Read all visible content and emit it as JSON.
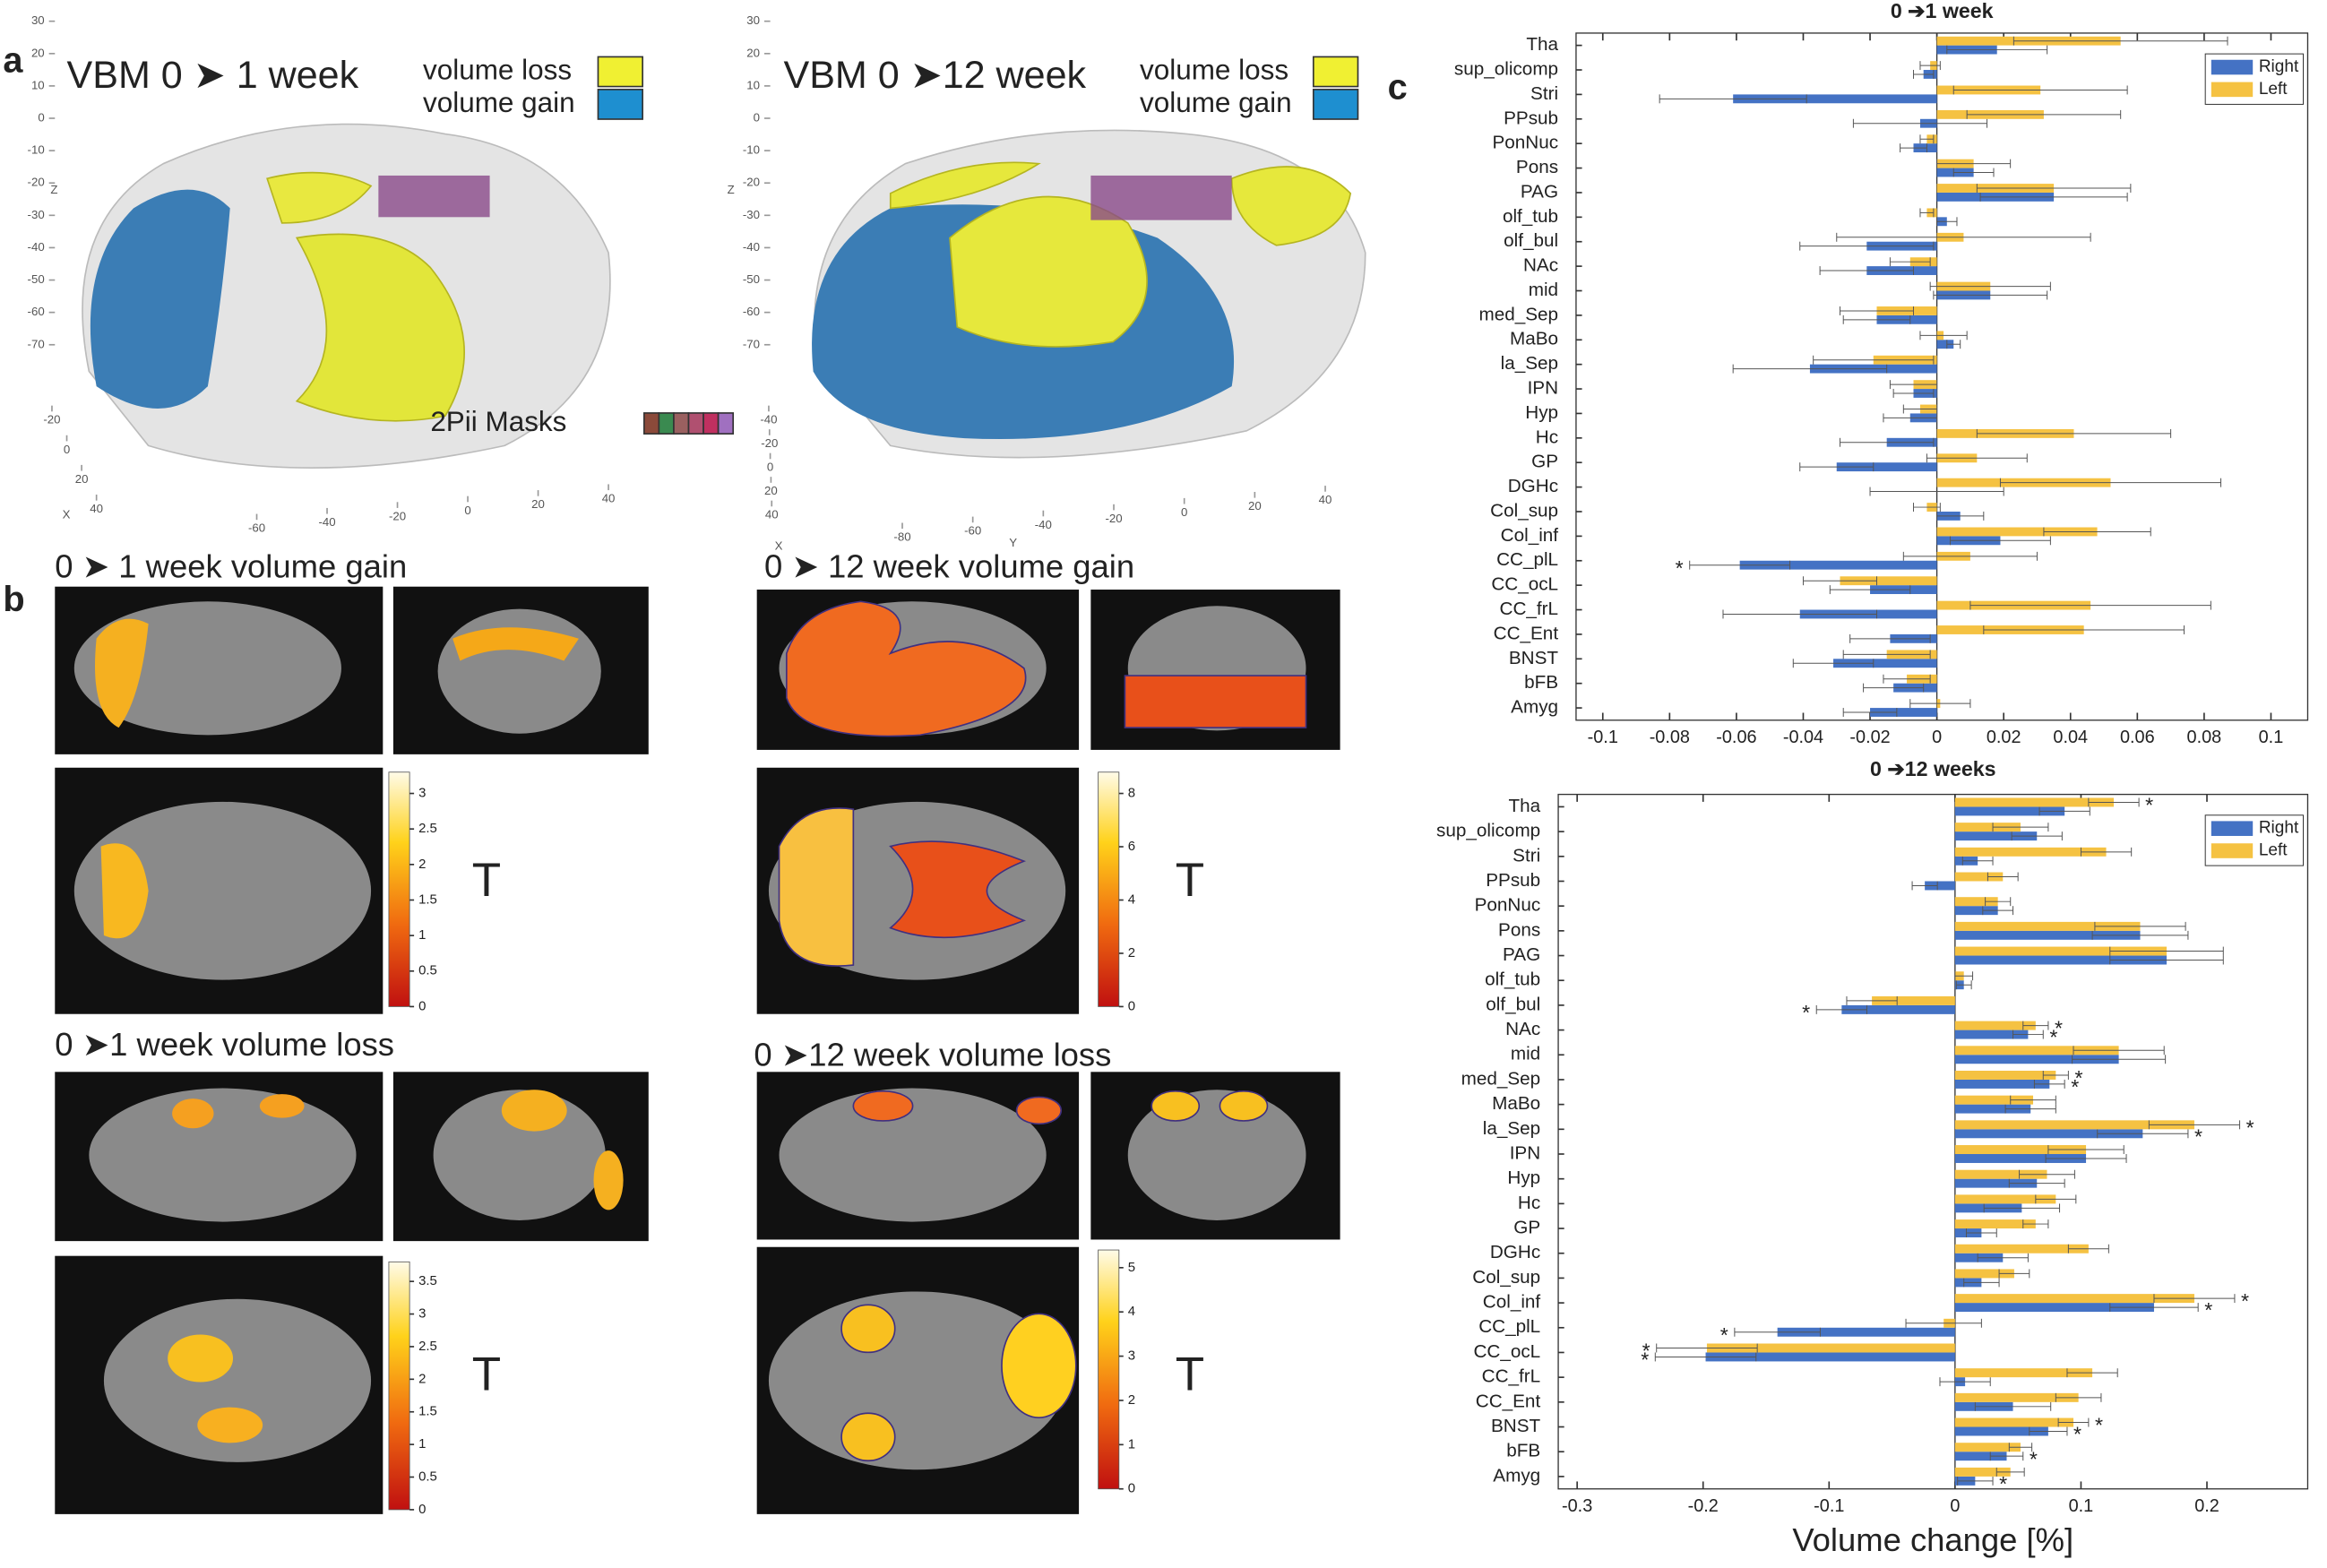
{
  "panels": {
    "a": {
      "label": "a",
      "views": [
        {
          "title": "VBM 0 ➤ 1 week",
          "legend": [
            "volume loss",
            "volume gain"
          ],
          "masks": "2Pii Masks",
          "zticks": [
            30,
            20,
            10,
            0,
            -10,
            -20,
            -30,
            -40,
            -50,
            -60,
            -70
          ],
          "zlabel": "Z",
          "xticks": [
            -20,
            0,
            20,
            40
          ],
          "xlabel": "X",
          "yticks": [
            -60,
            -40,
            -20,
            0,
            20,
            40
          ]
        },
        {
          "title": "VBM 0 ➤12 week",
          "legend": [
            "volume loss",
            "volume gain"
          ],
          "zticks": [
            30,
            20,
            10,
            0,
            -10,
            -20,
            -30,
            -40,
            -50,
            -60,
            -70
          ],
          "zlabel": "Z",
          "xticks": [
            -40,
            -20,
            0,
            20,
            40
          ],
          "xlabel": "X",
          "yticks": [
            -80,
            -60,
            -40,
            -20,
            0,
            20,
            40
          ],
          "ylabel": "Y"
        }
      ]
    },
    "b": {
      "label": "b",
      "maps": [
        {
          "title": "0 ➤ 1 week volume gain",
          "colorbar": {
            "clim": [
              0,
              3.3
            ],
            "ticks": [
              0,
              0.5,
              1,
              1.5,
              2,
              2.5,
              3
            ],
            "label": "T"
          }
        },
        {
          "title": "0 ➤ 12 week volume gain",
          "colorbar": {
            "clim": [
              0,
              8.8
            ],
            "ticks": [
              0,
              2,
              4,
              6,
              8
            ],
            "label": "T"
          }
        },
        {
          "title": "0 ➤1 week volume loss",
          "colorbar": {
            "clim": [
              0,
              3.8
            ],
            "ticks": [
              0,
              0.5,
              1,
              1.5,
              2,
              2.5,
              3,
              3.5
            ],
            "label": "T"
          }
        },
        {
          "title": "0 ➤12 week volume loss",
          "colorbar": {
            "clim": [
              0,
              5.4
            ],
            "ticks": [
              0,
              1,
              2,
              3,
              4,
              5
            ],
            "label": "T"
          }
        }
      ]
    },
    "c": {
      "label": "c"
    }
  },
  "chart_data": [
    {
      "type": "hbar",
      "title": "0 ➔1 week",
      "legend": "upper right",
      "categories": [
        "Tha",
        "sup_olicomp",
        "Stri",
        "PPsub",
        "PonNuc",
        "Pons",
        "PAG",
        "olf_tub",
        "olf_bul",
        "NAc",
        "mid",
        "med_Sep",
        "MaBo",
        "la_Sep",
        "IPN",
        "Hyp",
        "Hc",
        "GP",
        "DGHc",
        "Col_sup",
        "Col_inf",
        "CC_plL",
        "CC_ocL",
        "CC_frL",
        "CC_Ent",
        "BNST",
        "bFB",
        "Amyg"
      ],
      "series": [
        {
          "name": "Right",
          "color": "#4472c4",
          "values": [
            0.018,
            -0.004,
            -0.061,
            -0.005,
            -0.007,
            0.011,
            0.035,
            0.003,
            -0.021,
            -0.021,
            0.016,
            -0.018,
            0.005,
            -0.038,
            -0.007,
            -0.008,
            -0.015,
            -0.03,
            0,
            0.007,
            0.019,
            -0.059,
            -0.02,
            -0.041,
            -0.014,
            -0.031,
            -0.013,
            -0.02
          ],
          "errors": [
            0.015,
            0.003,
            0.022,
            0.02,
            0.004,
            0.006,
            0.022,
            0.003,
            0.02,
            0.014,
            0.017,
            0.01,
            0.002,
            0.023,
            0.006,
            0.008,
            0.014,
            0.011,
            0.02,
            0.007,
            0.015,
            0.015,
            0.012,
            0.023,
            0.012,
            0.012,
            0.009,
            0.008
          ]
        },
        {
          "name": "Left",
          "color": "#f5c242",
          "values": [
            0.055,
            -0.002,
            0.031,
            0.032,
            -0.003,
            0.011,
            0.035,
            -0.003,
            0.008,
            -0.008,
            0.016,
            -0.018,
            0.002,
            -0.019,
            -0.007,
            -0.005,
            0.041,
            0.012,
            0.052,
            -0.003,
            0.048,
            0.01,
            -0.029,
            0.046,
            0.044,
            -0.015,
            -0.009,
            0.001
          ],
          "errors": [
            0.032,
            0.003,
            0.026,
            0.023,
            0.002,
            0.011,
            0.023,
            0.002,
            0.038,
            0.006,
            0.018,
            0.011,
            0.007,
            0.018,
            0.007,
            0.005,
            0.029,
            0.015,
            0.033,
            0.004,
            0.016,
            0.02,
            0.011,
            0.036,
            0.03,
            0.013,
            0.007,
            0.009
          ]
        }
      ],
      "annotations": [
        {
          "text": "*",
          "series": 0,
          "index": 21
        }
      ],
      "xlim": [
        -0.108,
        0.111
      ],
      "xticks": [
        -0.1,
        -0.08,
        -0.06,
        -0.04,
        -0.02,
        0,
        0.02,
        0.04,
        0.06,
        0.08,
        0.1
      ]
    },
    {
      "type": "hbar",
      "title": "0 ➔12 weeks",
      "legend": "upper right",
      "xlabel": "Volume change [%]",
      "categories": [
        "Tha",
        "sup_olicomp",
        "Stri",
        "PPsub",
        "PonNuc",
        "Pons",
        "PAG",
        "olf_tub",
        "olf_bul",
        "NAc",
        "mid",
        "med_Sep",
        "MaBo",
        "la_Sep",
        "IPN",
        "Hyp",
        "Hc",
        "GP",
        "DGHc",
        "Col_sup",
        "Col_inf",
        "CC_plL",
        "CC_ocL",
        "CC_frL",
        "CC_Ent",
        "BNST",
        "bFB",
        "Amyg"
      ],
      "series": [
        {
          "name": "Right",
          "color": "#4472c4",
          "values": [
            0.087,
            0.065,
            0.018,
            -0.024,
            0.034,
            0.147,
            0.168,
            0.007,
            -0.09,
            0.058,
            0.13,
            0.075,
            0.06,
            0.149,
            0.104,
            0.065,
            0.053,
            0.021,
            0.038,
            0.021,
            0.158,
            -0.141,
            -0.198,
            0.008,
            0.046,
            0.074,
            0.041,
            0.016
          ],
          "errors": [
            0.02,
            0.02,
            0.012,
            0.01,
            0.012,
            0.038,
            0.045,
            0.006,
            0.02,
            0.012,
            0.037,
            0.012,
            0.02,
            0.036,
            0.032,
            0.022,
            0.03,
            0.012,
            0.02,
            0.014,
            0.035,
            0.034,
            0.04,
            0.02,
            0.03,
            0.015,
            0.013,
            0.014
          ]
        },
        {
          "name": "Left",
          "color": "#f5c242",
          "values": [
            0.126,
            0.052,
            0.12,
            0.038,
            0.034,
            0.147,
            0.168,
            0.007,
            -0.066,
            0.064,
            0.13,
            0.08,
            0.062,
            0.19,
            0.104,
            0.073,
            0.08,
            0.064,
            0.106,
            0.047,
            0.19,
            -0.009,
            -0.197,
            0.109,
            0.098,
            0.094,
            0.052,
            0.044
          ],
          "errors": [
            0.02,
            0.022,
            0.02,
            0.012,
            0.01,
            0.036,
            0.045,
            0.007,
            0.02,
            0.01,
            0.036,
            0.01,
            0.018,
            0.036,
            0.03,
            0.022,
            0.016,
            0.01,
            0.016,
            0.012,
            0.032,
            0.03,
            0.04,
            0.02,
            0.018,
            0.012,
            0.009,
            0.011
          ]
        }
      ],
      "annotations": [
        {
          "text": "*",
          "series": 1,
          "index": 0
        },
        {
          "text": "*",
          "series": 0,
          "index": 8
        },
        {
          "text": "*",
          "series": 1,
          "index": 9
        },
        {
          "text": "*",
          "series": 0,
          "index": 9
        },
        {
          "text": "*",
          "series": 1,
          "index": 11
        },
        {
          "text": "*",
          "series": 0,
          "index": 11
        },
        {
          "text": "*",
          "series": 1,
          "index": 13
        },
        {
          "text": "*",
          "series": 0,
          "index": 13
        },
        {
          "text": "*",
          "series": 1,
          "index": 20
        },
        {
          "text": "*",
          "series": 0,
          "index": 20
        },
        {
          "text": "*",
          "series": 0,
          "index": 21
        },
        {
          "text": "*",
          "series": 1,
          "index": 22
        },
        {
          "text": "*",
          "series": 0,
          "index": 22
        },
        {
          "text": "*",
          "series": 1,
          "index": 25
        },
        {
          "text": "*",
          "series": 0,
          "index": 25
        },
        {
          "text": "*",
          "series": 0,
          "index": 26
        },
        {
          "text": "*",
          "series": 0,
          "index": 27
        }
      ],
      "xlim": [
        -0.315,
        0.28
      ],
      "xticks": [
        -0.3,
        -0.2,
        -0.1,
        0,
        0.1,
        0.2
      ]
    }
  ]
}
